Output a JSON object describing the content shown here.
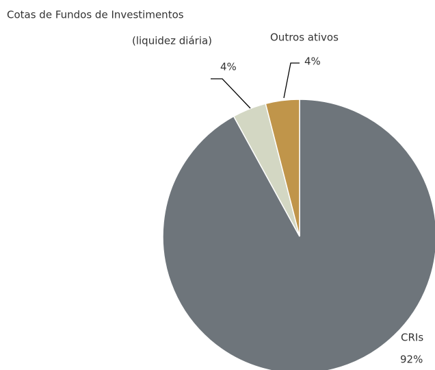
{
  "chart_data": {
    "type": "pie",
    "categories": [
      "CRIs",
      [
        "Cotas de Fundos de Investimentos",
        "(liquidez diária)"
      ],
      "Outros ativos"
    ],
    "values": [
      92,
      4,
      4
    ],
    "value_labels": [
      "92%",
      "4%",
      "4%"
    ],
    "colors": [
      "#6e757b",
      "#d3d7c3",
      "#c0954a"
    ]
  }
}
